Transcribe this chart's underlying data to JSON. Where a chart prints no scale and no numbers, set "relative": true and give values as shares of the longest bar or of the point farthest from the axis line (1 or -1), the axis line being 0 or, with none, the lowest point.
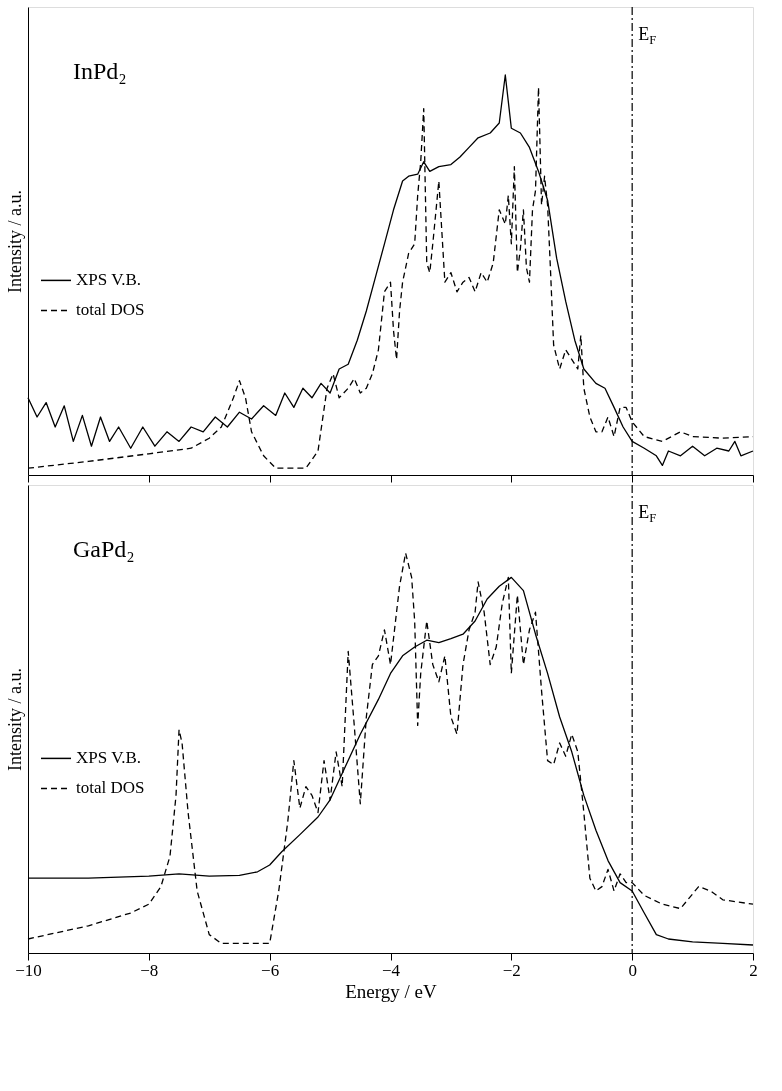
{
  "chart_data": [
    {
      "type": "line",
      "relative": true,
      "tick_labels": false,
      "ylabel": "Intensity / a.u.",
      "xlim": [
        -10,
        2
      ],
      "xticks": [
        -10,
        -8,
        -6,
        -4,
        -2,
        0,
        2
      ],
      "legend": "left",
      "grid": false,
      "annotations": [
        "InPd₂"
      ],
      "ref_lines": [
        {
          "axis": "x",
          "value": 0,
          "label": "E$_{F}$",
          "line_style": "dashdot",
          "color": "#000000"
        }
      ],
      "series": [
        {
          "name": "XPS V.B.",
          "color": "#000000",
          "line_style": "solid",
          "x": [
            -10,
            -9.85,
            -9.7,
            -9.55,
            -9.4,
            -9.25,
            -9.1,
            -8.95,
            -8.8,
            -8.65,
            -8.5,
            -8.3,
            -8.1,
            -7.9,
            -7.7,
            -7.5,
            -7.3,
            -7.1,
            -6.9,
            -6.7,
            -6.5,
            -6.3,
            -6.1,
            -5.9,
            -5.75,
            -5.6,
            -5.45,
            -5.3,
            -5.15,
            -5.0,
            -4.85,
            -4.7,
            -4.55,
            -4.4,
            -4.25,
            -4.1,
            -3.95,
            -3.8,
            -3.7,
            -3.55,
            -3.45,
            -3.35,
            -3.2,
            -3.0,
            -2.85,
            -2.7,
            -2.55,
            -2.35,
            -2.2,
            -2.1,
            -2.0,
            -1.85,
            -1.7,
            -1.55,
            -1.4,
            -1.25,
            -1.1,
            -0.95,
            -0.8,
            -0.6,
            -0.45,
            -0.3,
            -0.15,
            0,
            0.2,
            0.4,
            0.5,
            0.6,
            0.8,
            1.0,
            1.2,
            1.4,
            1.6,
            1.7,
            1.8,
            2.0
          ],
          "values": [
            0.193,
            0.145,
            0.181,
            0.12,
            0.173,
            0.084,
            0.149,
            0.072,
            0.145,
            0.084,
            0.12,
            0.067,
            0.12,
            0.072,
            0.108,
            0.084,
            0.12,
            0.108,
            0.145,
            0.12,
            0.157,
            0.14,
            0.173,
            0.149,
            0.205,
            0.169,
            0.217,
            0.193,
            0.229,
            0.205,
            0.265,
            0.277,
            0.337,
            0.41,
            0.494,
            0.578,
            0.663,
            0.735,
            0.747,
            0.752,
            0.783,
            0.759,
            0.771,
            0.776,
            0.795,
            0.819,
            0.843,
            0.855,
            0.88,
            1,
            0.867,
            0.855,
            0.819,
            0.759,
            0.687,
            0.542,
            0.434,
            0.337,
            0.265,
            0.229,
            0.217,
            0.169,
            0.12,
            0.084,
            0.067,
            0.048,
            0.024,
            0.06,
            0.048,
            0.072,
            0.048,
            0.067,
            0.06,
            0.084,
            0.048,
            0.06
          ]
        },
        {
          "name": "total DOS",
          "color": "#000000",
          "line_style": "dashed",
          "x": [
            -10,
            -9,
            -8,
            -7.3,
            -7,
            -6.8,
            -6.6,
            -6.5,
            -6.4,
            -6.3,
            -6.1,
            -5.9,
            -5.4,
            -5.2,
            -5.05,
            -4.95,
            -4.85,
            -4.7,
            -4.6,
            -4.5,
            -4.4,
            -4.3,
            -4.2,
            -4.1,
            -4.0,
            -3.95,
            -3.9,
            -3.85,
            -3.8,
            -3.7,
            -3.6,
            -3.55,
            -3.5,
            -3.45,
            -3.4,
            -3.35,
            -3.3,
            -3.2,
            -3.1,
            -3.0,
            -2.9,
            -2.8,
            -2.7,
            -2.6,
            -2.5,
            -2.4,
            -2.3,
            -2.2,
            -2.1,
            -2.05,
            -2.0,
            -1.95,
            -1.9,
            -1.85,
            -1.8,
            -1.75,
            -1.7,
            -1.65,
            -1.6,
            -1.55,
            -1.5,
            -1.45,
            -1.4,
            -1.35,
            -1.3,
            -1.2,
            -1.1,
            -1.0,
            -0.9,
            -0.85,
            -0.8,
            -0.7,
            -0.6,
            -0.5,
            -0.4,
            -0.3,
            -0.2,
            -0.1,
            0,
            0.2,
            0.5,
            0.8,
            1.0,
            1.5,
            2
          ],
          "values": [
            0.017,
            0.034,
            0.053,
            0.067,
            0.092,
            0.12,
            0.193,
            0.236,
            0.193,
            0.108,
            0.048,
            0.017,
            0.017,
            0.06,
            0.217,
            0.253,
            0.193,
            0.217,
            0.241,
            0.205,
            0.217,
            0.253,
            0.313,
            0.458,
            0.482,
            0.361,
            0.289,
            0.41,
            0.482,
            0.554,
            0.578,
            0.699,
            0.783,
            0.916,
            0.53,
            0.506,
            0.578,
            0.735,
            0.482,
            0.506,
            0.458,
            0.482,
            0.494,
            0.458,
            0.506,
            0.482,
            0.53,
            0.663,
            0.627,
            0.699,
            0.578,
            0.771,
            0.506,
            0.566,
            0.663,
            0.518,
            0.482,
            0.663,
            0.711,
            0.969,
            0.675,
            0.747,
            0.675,
            0.506,
            0.325,
            0.265,
            0.313,
            0.289,
            0.265,
            0.349,
            0.217,
            0.145,
            0.108,
            0.108,
            0.145,
            0.096,
            0.169,
            0.169,
            0.133,
            0.096,
            0.084,
            0.108,
            0.096,
            0.092,
            0.096
          ]
        }
      ]
    },
    {
      "type": "line",
      "relative": true,
      "tick_labels": "x",
      "xlabel": "Energy / eV",
      "ylabel": "Intensity / a.u.",
      "xlim": [
        -10,
        2
      ],
      "xticks": [
        -10,
        -8,
        -6,
        -4,
        -2,
        0,
        2
      ],
      "legend": "left",
      "grid": false,
      "annotations": [
        "GaPd₂"
      ],
      "ref_lines": [
        {
          "axis": "x",
          "value": 0,
          "label": "E$_{F}$",
          "line_style": "dashdot",
          "color": "#000000"
        }
      ],
      "series": [
        {
          "name": "XPS V.B.",
          "color": "#000000",
          "line_style": "solid",
          "x": [
            -10,
            -9,
            -8,
            -7.5,
            -7,
            -6.5,
            -6.2,
            -6.0,
            -5.8,
            -5.5,
            -5.2,
            -5.0,
            -4.8,
            -4.5,
            -4.2,
            -4.0,
            -3.8,
            -3.6,
            -3.4,
            -3.2,
            -3.0,
            -2.8,
            -2.6,
            -2.4,
            -2.2,
            -2.0,
            -1.8,
            -1.6,
            -1.4,
            -1.2,
            -1.0,
            -0.8,
            -0.6,
            -0.4,
            -0.2,
            0,
            0.2,
            0.4,
            0.6,
            1.0,
            1.5,
            2
          ],
          "values": [
            0.187,
            0.187,
            0.192,
            0.198,
            0.192,
            0.194,
            0.203,
            0.22,
            0.253,
            0.296,
            0.34,
            0.383,
            0.449,
            0.547,
            0.634,
            0.699,
            0.743,
            0.765,
            0.782,
            0.776,
            0.786,
            0.797,
            0.83,
            0.885,
            0.917,
            0.939,
            0.906,
            0.797,
            0.699,
            0.59,
            0.503,
            0.394,
            0.307,
            0.231,
            0.176,
            0.155,
            0.1,
            0.046,
            0.035,
            0.028,
            0.024,
            0.02
          ]
        },
        {
          "name": "total DOS",
          "color": "#000000",
          "line_style": "dashed",
          "x": [
            -10,
            -9,
            -8.3,
            -8.0,
            -7.8,
            -7.65,
            -7.55,
            -7.5,
            -7.45,
            -7.35,
            -7.2,
            -7.0,
            -6.8,
            -6.0,
            -5.85,
            -5.7,
            -5.6,
            -5.5,
            -5.4,
            -5.3,
            -5.2,
            -5.1,
            -5.0,
            -4.9,
            -4.8,
            -4.7,
            -4.6,
            -4.5,
            -4.4,
            -4.3,
            -4.2,
            -4.1,
            -4.0,
            -3.9,
            -3.85,
            -3.75,
            -3.65,
            -3.6,
            -3.55,
            -3.5,
            -3.4,
            -3.3,
            -3.2,
            -3.1,
            -3.0,
            -2.9,
            -2.8,
            -2.7,
            -2.6,
            -2.55,
            -2.45,
            -2.35,
            -2.25,
            -2.15,
            -2.05,
            -2.0,
            -1.9,
            -1.8,
            -1.7,
            -1.6,
            -1.5,
            -1.4,
            -1.3,
            -1.2,
            -1.1,
            -1.0,
            -0.9,
            -0.8,
            -0.7,
            -0.6,
            -0.5,
            -0.4,
            -0.3,
            -0.2,
            -0.1,
            0,
            0.2,
            0.5,
            0.8,
            1.1,
            1.3,
            1.5,
            2.0
          ],
          "values": [
            0.035,
            0.068,
            0.1,
            0.122,
            0.166,
            0.242,
            0.394,
            0.558,
            0.525,
            0.351,
            0.155,
            0.046,
            0.024,
            0.024,
            0.155,
            0.329,
            0.481,
            0.362,
            0.416,
            0.394,
            0.351,
            0.481,
            0.383,
            0.503,
            0.416,
            0.754,
            0.569,
            0.373,
            0.59,
            0.721,
            0.743,
            0.808,
            0.721,
            0.852,
            0.917,
            1,
            0.939,
            0.83,
            0.569,
            0.699,
            0.83,
            0.721,
            0.678,
            0.743,
            0.59,
            0.547,
            0.721,
            0.808,
            0.852,
            0.928,
            0.852,
            0.721,
            0.765,
            0.874,
            0.939,
            0.699,
            0.895,
            0.721,
            0.808,
            0.852,
            0.656,
            0.481,
            0.471,
            0.525,
            0.492,
            0.547,
            0.503,
            0.351,
            0.187,
            0.155,
            0.166,
            0.209,
            0.155,
            0.198,
            0.176,
            0.176,
            0.144,
            0.122,
            0.111,
            0.166,
            0.155,
            0.133,
            0.122
          ]
        }
      ]
    }
  ]
}
